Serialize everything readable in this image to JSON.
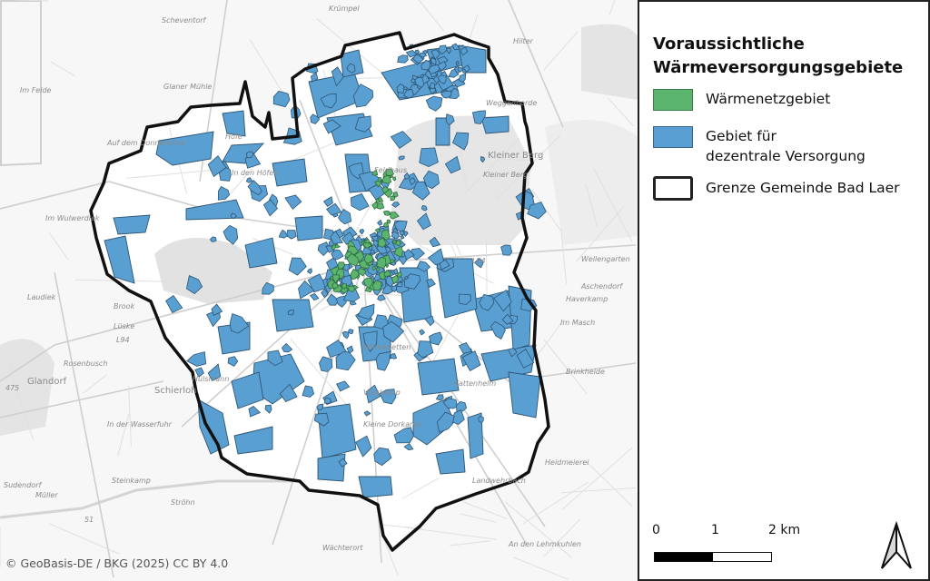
{
  "legend": {
    "title_line1": "Voraussichtliche",
    "title_line2": "Wärmeversorgungsgebiete",
    "items": [
      {
        "label": "Wärmenetzgebiet",
        "fill": "#5bb56e",
        "stroke": "#3d7a4a"
      },
      {
        "label_line1": "Gebiet für",
        "label_line2": "dezentrale Versorgung",
        "fill": "#5a9fd1",
        "stroke": "#35658a"
      },
      {
        "label": "Grenze Gemeinde Bad Laer",
        "fill": "#ffffff",
        "stroke": "#222222"
      }
    ]
  },
  "scale": {
    "labels": [
      "0",
      "1",
      "2 km"
    ]
  },
  "north_arrow": {
    "icon": "north-arrow-icon"
  },
  "credit": "© GeoBasis-DE / BKG (2025) CC BY 4.0",
  "map": {
    "place_labels": [
      {
        "text": "Scheventorf"
      },
      {
        "text": "Glaner Mühle"
      },
      {
        "text": "Im Felde"
      },
      {
        "text": "Auf dem Donnerbrink"
      },
      {
        "text": "In den Höfen"
      },
      {
        "text": "Im Wulwerdiek"
      },
      {
        "text": "Höfe"
      },
      {
        "text": "Krümpel"
      },
      {
        "text": "Kleiner Berg"
      },
      {
        "text": "Kleiner Berg"
      },
      {
        "text": "Feldhaus"
      },
      {
        "text": "Weggenhorde"
      },
      {
        "text": "Hilter"
      },
      {
        "text": "Wellengarten"
      },
      {
        "text": "Aschendorf"
      },
      {
        "text": "Brook"
      },
      {
        "text": "Lüske"
      },
      {
        "text": "Rosenbusch"
      },
      {
        "text": "Glandorf"
      },
      {
        "text": "Schierloh"
      },
      {
        "text": "Hülsmann"
      },
      {
        "text": "In der Wasserfuhr"
      },
      {
        "text": "Steinkamp"
      },
      {
        "text": "Ströhn"
      },
      {
        "text": "Sudendorf"
      },
      {
        "text": "Müller"
      },
      {
        "text": "Winkelsetten"
      },
      {
        "text": "Kleine Dorkamp"
      },
      {
        "text": "Vosskamp"
      },
      {
        "text": "Kattenhelm"
      },
      {
        "text": "Haverkamp"
      },
      {
        "text": "Im Masch"
      },
      {
        "text": "Brinkheide"
      },
      {
        "text": "Heidmeierei"
      },
      {
        "text": "Landwehrbach"
      },
      {
        "text": "An den Lehmkuhlen"
      },
      {
        "text": "Wächterort"
      },
      {
        "text": "Laudiek"
      }
    ],
    "road_labels": [
      "L94",
      "L94",
      "475",
      "51"
    ]
  }
}
